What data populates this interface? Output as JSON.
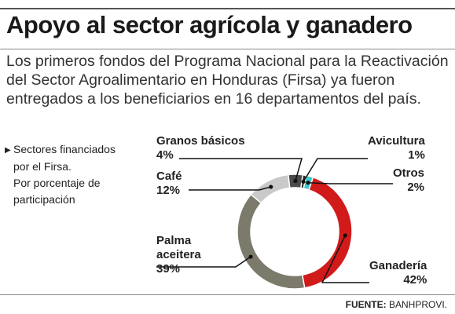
{
  "title": "Apoyo al sector agrícola y ganadero",
  "intro": "Los primeros fondos del Programa Nacional para la Reactivación del Sector Agroalimentario en Honduras (Firsa) ya fueron entregados a los beneficiarios en 16 departamentos del país.",
  "side_note": {
    "line1": "Sectores financiados",
    "line2": "por el Firsa.",
    "line3": "Por porcentaje de",
    "line4": "participación"
  },
  "footer": {
    "label": "FUENTE:",
    "source": "BANHPROVI."
  },
  "chart_data": {
    "type": "pie",
    "donut": true,
    "title": "Sectores financiados por el Firsa. Por porcentaje de participación",
    "unit": "%",
    "slices": [
      {
        "name": "Avicultura",
        "value": 1,
        "display": "1%",
        "color": "#2a2a2a"
      },
      {
        "name": "Otros",
        "value": 2,
        "display": "2%",
        "color": "#3fc8c8"
      },
      {
        "name": "Ganadería",
        "value": 42,
        "display": "42%",
        "color": "#d11b1b"
      },
      {
        "name": "Palma aceitera",
        "value": 39,
        "display": "39%",
        "color": "#7c7a6a"
      },
      {
        "name": "Café",
        "value": 12,
        "display": "12%",
        "color": "#c9c9c9"
      },
      {
        "name": "Granos básicos",
        "value": 4,
        "display": "4%",
        "color": "#4a4a4a"
      }
    ],
    "label_lines": {
      "avicultura": [
        "Avicultura",
        "1%"
      ],
      "otros": [
        "Otros",
        "2%"
      ],
      "ganaderia": [
        "Ganadería",
        "42%"
      ],
      "palma": [
        "Palma",
        "aceitera",
        "39%"
      ],
      "cafe": [
        "Café",
        "12%"
      ],
      "granos": [
        "Granos básicos",
        "4%"
      ]
    }
  }
}
